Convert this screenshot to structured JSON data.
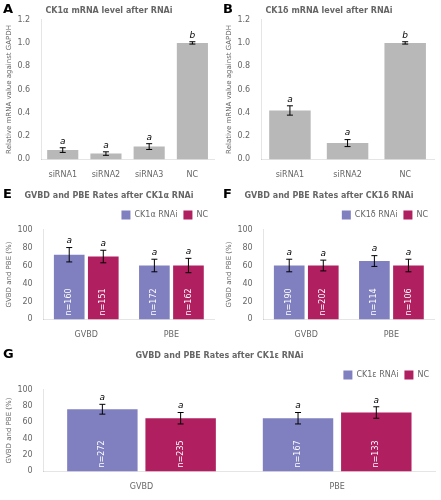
{
  "chart_data": [
    {
      "type": "bar",
      "title": "CK1α mRNA level after RNAi",
      "annotation": "A",
      "categories": [
        "siRNA1",
        "siRNA2",
        "siRNA3",
        "NC"
      ],
      "values": [
        0.08,
        0.05,
        0.11,
        1.0
      ],
      "errors": [
        0.02,
        0.015,
        0.025,
        0.01
      ],
      "letters": [
        "a",
        "a",
        "a",
        "b"
      ],
      "color": "#b8b8b8",
      "ylabel": "Relative mRNA value against GAPDH",
      "ylim": [
        0,
        1.2
      ],
      "yticks": [
        {
          "value": 0,
          "label": "0.0"
        },
        0.2,
        0.4,
        0.6,
        0.8,
        {
          "value": 1,
          "label": "1.0"
        },
        1.2
      ],
      "grid": false
    },
    {
      "type": "bar",
      "title": "CK1δ mRNA level after RNAi",
      "annotation": "B",
      "categories": [
        "siRNA1",
        "siRNA2",
        "NC"
      ],
      "values": [
        0.42,
        0.14,
        1.0
      ],
      "errors": [
        0.04,
        0.03,
        0.01
      ],
      "letters": [
        "a",
        "a",
        "b"
      ],
      "color": "#b8b8b8",
      "ylabel": "Relative mRNA value against GAPDH",
      "ylim": [
        0,
        1.2
      ],
      "yticks": [
        {
          "value": 0,
          "label": "0.0"
        },
        0.2,
        0.4,
        0.6,
        0.8,
        {
          "value": 1,
          "label": "1.0"
        },
        1.2
      ],
      "grid": false
    },
    {
      "type": "bar",
      "title": "GVBD and PBE Rates after CK1α RNAi",
      "annotation": "E",
      "categories": [
        "GVBD",
        "PBE"
      ],
      "series": [
        {
          "name": "CK1α RNAi",
          "color": "#8080c0",
          "values": [
            72,
            60
          ],
          "errors": [
            8,
            7
          ],
          "letters": [
            "a",
            "a"
          ],
          "n_labels": [
            "n=160",
            "n=172"
          ]
        },
        {
          "name": "NC",
          "color": "#b02060",
          "values": [
            70,
            60
          ],
          "errors": [
            7,
            8
          ],
          "letters": [
            "a",
            "a"
          ],
          "n_labels": [
            "n=151",
            "n=162"
          ]
        }
      ],
      "ylabel": "GVBD and PBE (%)",
      "ylim": [
        0,
        100
      ],
      "yticks": [
        0,
        20,
        40,
        60,
        80,
        100
      ],
      "legend": "upper right",
      "grid": false
    },
    {
      "type": "bar",
      "title": "GVBD and PBE Rates after CK1δ RNAi",
      "annotation": "F",
      "categories": [
        "GVBD",
        "PBE"
      ],
      "series": [
        {
          "name": "CK1δ RNAi",
          "color": "#8080c0",
          "values": [
            60,
            65
          ],
          "errors": [
            7,
            6
          ],
          "letters": [
            "a",
            "a"
          ],
          "n_labels": [
            "n=190",
            "n=114"
          ]
        },
        {
          "name": "NC",
          "color": "#b02060",
          "values": [
            60,
            60
          ],
          "errors": [
            6,
            7
          ],
          "letters": [
            "a",
            "a"
          ],
          "n_labels": [
            "n=202",
            "n=106"
          ]
        }
      ],
      "ylabel": "GVBD and PBE (%)",
      "ylim": [
        0,
        100
      ],
      "yticks": [
        0,
        20,
        40,
        60,
        80,
        100
      ],
      "legend": "upper right",
      "grid": false
    },
    {
      "type": "bar",
      "title": "GVBD and PBE Rates after CK1ε RNAi",
      "annotation": "G",
      "categories": [
        "GVBD",
        "PBE"
      ],
      "series": [
        {
          "name": "CK1ε RNAi",
          "color": "#8080c0",
          "values": [
            76,
            65
          ],
          "errors": [
            6,
            7
          ],
          "letters": [
            "a",
            "a"
          ],
          "n_labels": [
            "n=272",
            "n=167"
          ]
        },
        {
          "name": "NC",
          "color": "#b02060",
          "values": [
            65,
            72
          ],
          "errors": [
            7,
            7
          ],
          "letters": [
            "a",
            "a"
          ],
          "n_labels": [
            "n=235",
            "n=133"
          ]
        }
      ],
      "ylabel": "GVBD and PBE (%)",
      "ylim": [
        0,
        100
      ],
      "yticks": [
        0,
        20,
        40,
        60,
        80,
        100
      ],
      "legend": "upper right",
      "grid": false
    }
  ]
}
